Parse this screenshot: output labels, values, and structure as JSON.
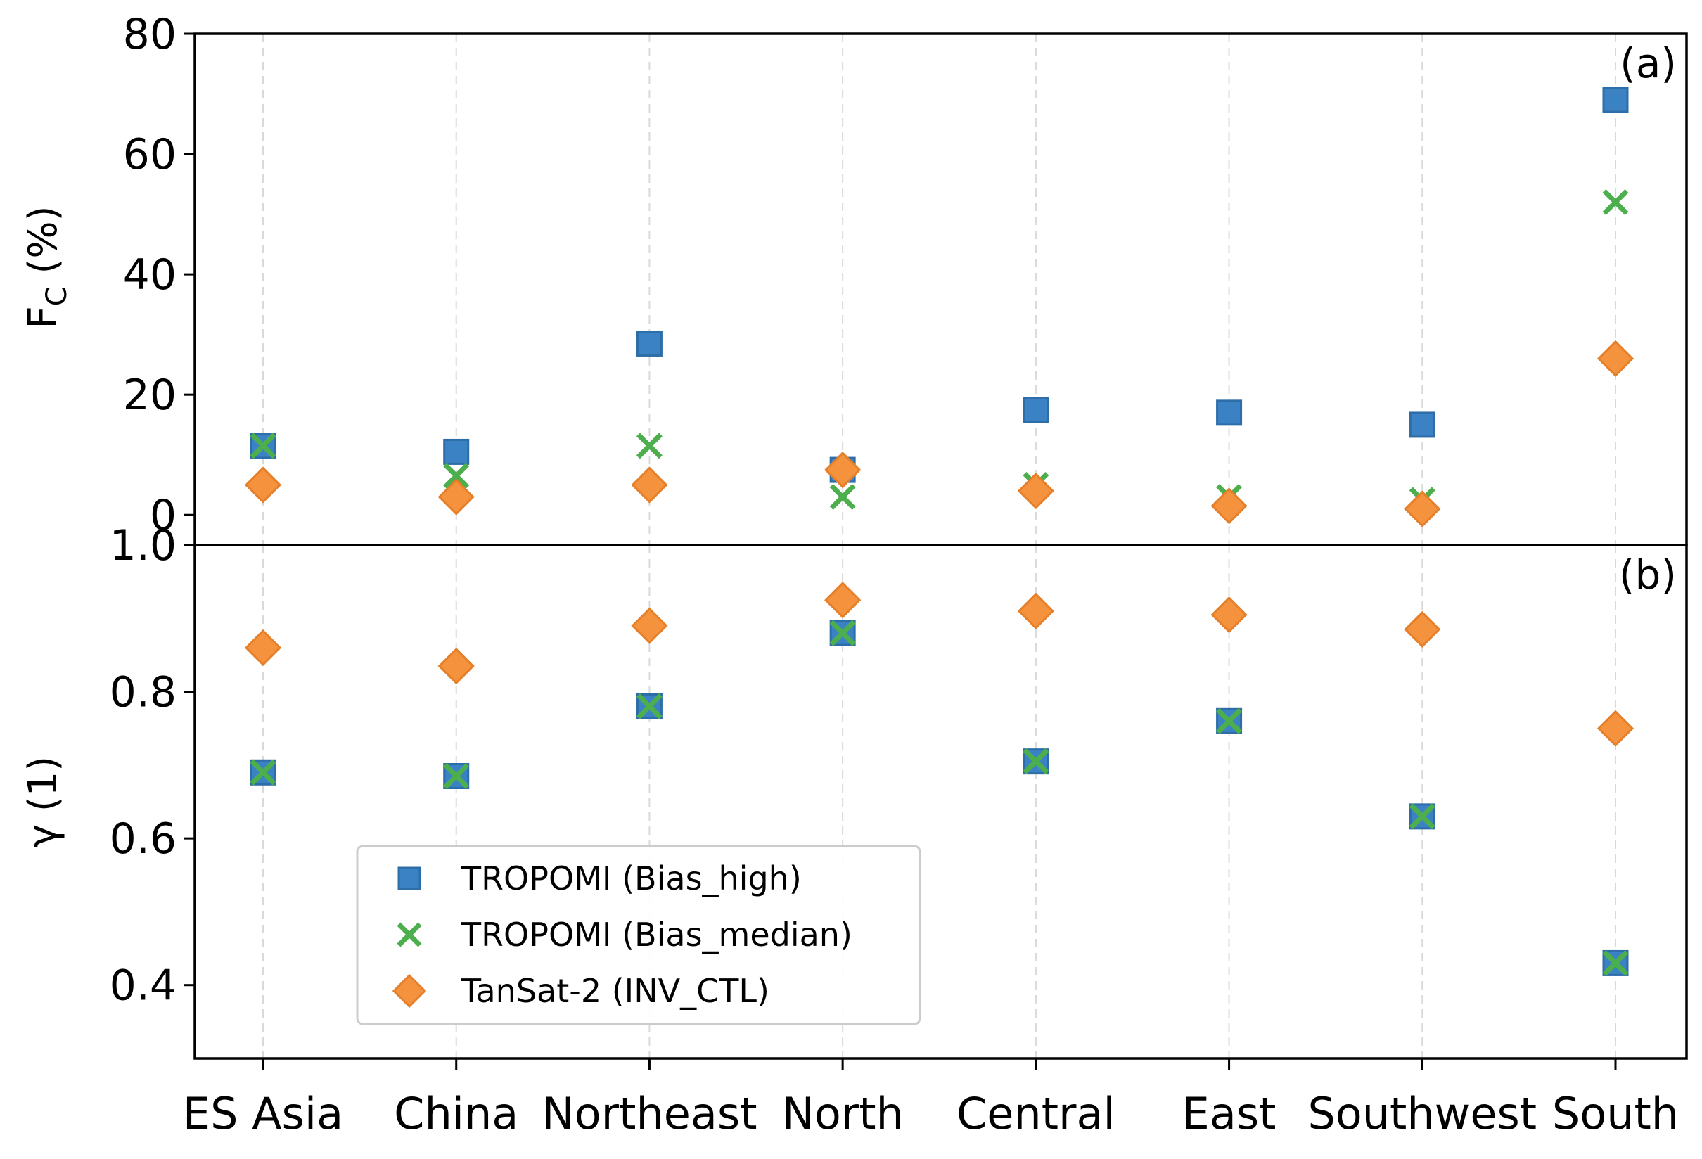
{
  "chart_data": [
    {
      "type": "scatter",
      "panel": "(a)",
      "ylabel_main": "F",
      "ylabel_sub": "C",
      "ylabel_unit": " (%)",
      "ylim": [
        -5,
        80
      ],
      "yticks": [
        0,
        20,
        40,
        60,
        80
      ],
      "ytick_labels": [
        "0",
        "20",
        "40",
        "60",
        "80"
      ],
      "grid": "x-dashed",
      "categories": [
        "ES Asia",
        "China",
        "Northeast",
        "North",
        "Central",
        "East",
        "Southwest",
        "South"
      ],
      "series": [
        {
          "name": "TROPOMI (Bias_high)",
          "marker": "square",
          "color": "#3b82c4",
          "values": [
            11.5,
            10.5,
            28.5,
            7.5,
            17.5,
            17,
            15,
            69
          ]
        },
        {
          "name": "TROPOMI (Bias_median)",
          "marker": "x",
          "color": "#4cae4c",
          "values": [
            11.5,
            6.5,
            11.5,
            3,
            5,
            3,
            2.5,
            52
          ]
        },
        {
          "name": "TanSat-2 (INV_CTL)",
          "marker": "diamond",
          "color": "#f5923e",
          "values": [
            5,
            3,
            5,
            7.5,
            4,
            1.5,
            1,
            26
          ]
        }
      ]
    },
    {
      "type": "scatter",
      "panel": "(b)",
      "ylabel": "γ (1)",
      "ylim": [
        0.3,
        1.0
      ],
      "yticks": [
        0.4,
        0.6,
        0.8,
        1.0
      ],
      "ytick_labels": [
        "0.4",
        "0.6",
        "0.8",
        "1.0"
      ],
      "grid": "x-dashed",
      "categories": [
        "ES Asia",
        "China",
        "Northeast",
        "North",
        "Central",
        "East",
        "Southwest",
        "South"
      ],
      "series": [
        {
          "name": "TROPOMI (Bias_high)",
          "marker": "square",
          "color": "#3b82c4",
          "values": [
            0.69,
            0.685,
            0.78,
            0.88,
            0.705,
            0.76,
            0.63,
            0.43
          ]
        },
        {
          "name": "TROPOMI (Bias_median)",
          "marker": "x",
          "color": "#4cae4c",
          "values": [
            0.69,
            0.685,
            0.78,
            0.88,
            0.705,
            0.76,
            0.63,
            0.43
          ]
        },
        {
          "name": "TanSat-2 (INV_CTL)",
          "marker": "diamond",
          "color": "#f5923e",
          "values": [
            0.86,
            0.835,
            0.89,
            0.925,
            0.91,
            0.905,
            0.885,
            0.75
          ]
        }
      ],
      "legend": {
        "placement": "lower-left",
        "entries": [
          "TROPOMI (Bias_high)",
          "TROPOMI (Bias_median)",
          "TanSat-2 (INV_CTL)"
        ]
      }
    }
  ]
}
